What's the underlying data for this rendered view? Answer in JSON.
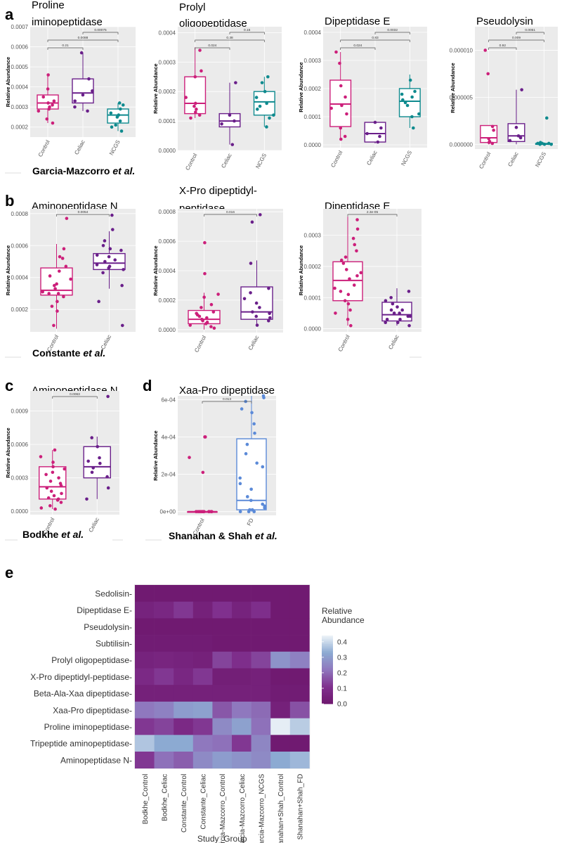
{
  "colors": {
    "control": "#cc1f7a",
    "celiac": "#6a1f8a",
    "ncgs": "#0e8a8e",
    "fd": "#5b8ad8",
    "panel_bg": "#ebebeb",
    "grid": "#ffffff"
  },
  "common": {
    "ylabel": "Relative Abundance"
  },
  "panel_letters": {
    "a": "a",
    "b": "b",
    "c": "c",
    "d": "d",
    "e": "e"
  },
  "study_labels": [
    {
      "text": "Garcia-Mazcorro ",
      "italic": "et al."
    },
    {
      "text": "Constante ",
      "italic": "et al."
    },
    {
      "text": "Bodkhe ",
      "italic": "et al."
    },
    {
      "text": "Shanahan & Shah ",
      "italic": "et al."
    }
  ],
  "chart_data": [
    {
      "id": "a1",
      "type": "box",
      "title": [
        "Proline",
        "iminopeptidase"
      ],
      "categories": [
        "Control",
        "Celiac",
        "NCGS"
      ],
      "ylim": [
        0.00015,
        0.0007
      ],
      "yticks": [
        "0.0002",
        "0.0003",
        "0.0004",
        "0.0005",
        "0.0006",
        "0.0007"
      ],
      "ytick_vals": [
        0.0002,
        0.0003,
        0.0004,
        0.0005,
        0.0006,
        0.0007
      ],
      "boxes": [
        {
          "min": 0.00022,
          "q1": 0.00029,
          "med": 0.00032,
          "q3": 0.00036,
          "max": 0.00046
        },
        {
          "min": 0.00028,
          "q1": 0.00032,
          "med": 0.00037,
          "q3": 0.00044,
          "max": 0.00057
        },
        {
          "min": 0.00018,
          "q1": 0.00022,
          "med": 0.00026,
          "q3": 0.00029,
          "max": 0.00032
        }
      ],
      "points": [
        [
          0.00031,
          0.00029,
          0.00024,
          0.00035,
          0.00033,
          0.00022,
          0.00039,
          0.00046,
          0.00032,
          0.00028,
          0.0003
        ],
        [
          0.0003,
          0.00036,
          0.00044,
          0.00028,
          0.00033,
          0.00057,
          0.00038
        ],
        [
          0.00026,
          0.00021,
          0.00018,
          0.00031,
          0.00029,
          0.00023,
          0.00027,
          0.00025,
          0.00032,
          0.0002
        ]
      ],
      "pvals": [
        {
          "a": 0,
          "b": 1,
          "t": "0.21"
        },
        {
          "a": 0,
          "b": 2,
          "t": "0.0088"
        },
        {
          "a": 1,
          "b": 2,
          "t": "0.00075"
        }
      ]
    },
    {
      "id": "a2",
      "type": "box",
      "title": [
        "Prolyl",
        "oligopeptidase"
      ],
      "categories": [
        "Control",
        "Celiac",
        "NCGS"
      ],
      "ylim": [
        0,
        0.00042
      ],
      "yticks": [
        "0.0000",
        "0.0001",
        "0.0002",
        "0.0003",
        "0.0004"
      ],
      "ytick_vals": [
        0,
        0.0001,
        0.0002,
        0.0003,
        0.0004
      ],
      "boxes": [
        {
          "min": 0.00011,
          "q1": 0.000125,
          "med": 0.00016,
          "q3": 0.00025,
          "max": 0.00035
        },
        {
          "min": 2e-05,
          "q1": 8e-05,
          "med": 0.0001,
          "q3": 0.000125,
          "max": 0.00023
        },
        {
          "min": 8e-05,
          "q1": 0.00012,
          "med": 0.000165,
          "q3": 0.0002,
          "max": 0.00025
        }
      ],
      "points": [
        [
          0.00012,
          0.00014,
          0.00015,
          0.00011,
          0.00027,
          0.00034,
          0.00025,
          0.00013,
          0.00016,
          0.00018
        ],
        [
          2e-05,
          9e-05,
          0.00012,
          0.00023,
          0.0001
        ],
        [
          0.00012,
          0.00015,
          0.00018,
          0.0002,
          0.00023,
          0.00025,
          0.00011,
          0.00016,
          8e-05,
          0.00014
        ]
      ],
      "pvals": [
        {
          "a": 0,
          "b": 1,
          "t": "0.024"
        },
        {
          "a": 0,
          "b": 2,
          "t": "0.38"
        },
        {
          "a": 1,
          "b": 2,
          "t": "0.15"
        }
      ]
    },
    {
      "id": "a3",
      "type": "box",
      "title": [
        "Dipeptidase E"
      ],
      "categories": [
        "Control",
        "Celiac",
        "NCGS"
      ],
      "ylim": [
        -1e-05,
        0.00042
      ],
      "yticks": [
        "0.0000",
        "0.0001",
        "0.0002",
        "0.0003",
        "0.0004"
      ],
      "ytick_vals": [
        0,
        0.0001,
        0.0002,
        0.0003,
        0.0004
      ],
      "boxes": [
        {
          "min": 2e-05,
          "q1": 6.5e-05,
          "med": 0.000145,
          "q3": 0.00023,
          "max": 0.00033
        },
        {
          "min": 5e-06,
          "q1": 1e-05,
          "med": 4e-05,
          "q3": 8e-05,
          "max": 8e-05
        },
        {
          "min": 6e-05,
          "q1": 0.0001,
          "med": 0.000155,
          "q3": 0.0002,
          "max": 0.00025
        }
      ],
      "points": [
        [
          3e-05,
          0.00014,
          0.00029,
          0.00033,
          0.00011,
          0.00017,
          6e-05,
          2e-05,
          0.00021,
          0.00013
        ],
        [
          1e-05,
          4e-05,
          8e-05,
          6e-05,
          3e-05
        ],
        [
          0.00011,
          0.00015,
          0.00018,
          0.00023,
          0.00014,
          6e-05,
          0.00019,
          0.00017,
          0.0001,
          0.00016
        ]
      ],
      "pvals": [
        {
          "a": 0,
          "b": 1,
          "t": "0.024"
        },
        {
          "a": 0,
          "b": 2,
          "t": "0.83"
        },
        {
          "a": 1,
          "b": 2,
          "t": "0.0032"
        }
      ]
    },
    {
      "id": "a4",
      "type": "box",
      "title": [
        "Pseudolysin"
      ],
      "categories": [
        "Control",
        "Celiac",
        "NCGS"
      ],
      "ylim": [
        -5e-07,
        1.25e-05
      ],
      "yticks": [
        "0.000000",
        "0.000005",
        "0.000010"
      ],
      "ytick_vals": [
        0,
        5e-06,
        1e-05
      ],
      "boxes": [
        {
          "min": 0,
          "q1": 2e-07,
          "med": 7e-07,
          "q3": 2e-06,
          "max": 2e-06
        },
        {
          "min": 0,
          "q1": 3e-07,
          "med": 9e-07,
          "q3": 2.2e-06,
          "max": 5.8e-06
        },
        {
          "min": 0,
          "q1": 0,
          "med": 5e-08,
          "q3": 1e-07,
          "max": 2e-07
        }
      ],
      "points": [
        [
          1e-07,
          3e-07,
          7.5e-06,
          1e-05,
          1.5e-06,
          1.9e-06,
          6e-07,
          2e-07
        ],
        [
          7e-07,
          5.8e-06,
          9e-07,
          4e-07,
          1.8e-06
        ],
        [
          0,
          1e-07,
          0,
          2e-07,
          1e-07,
          0,
          1e-07,
          2.8e-06
        ]
      ],
      "pvals": [
        {
          "a": 0,
          "b": 1,
          "t": "0.92"
        },
        {
          "a": 0,
          "b": 2,
          "t": "0.009"
        },
        {
          "a": 1,
          "b": 2,
          "t": "0.0051"
        }
      ]
    },
    {
      "id": "b1",
      "type": "box",
      "title": [
        "Aminopeptidase N"
      ],
      "categories": [
        "Control",
        "Celiac"
      ],
      "ylim": [
        6e-05,
        0.00083
      ],
      "yticks": [
        "0.0002",
        "0.0004",
        "0.0006",
        "0.0008"
      ],
      "ytick_vals": [
        0.0002,
        0.0004,
        0.0006,
        0.0008
      ],
      "boxes": [
        {
          "min": 8e-05,
          "q1": 0.00029,
          "med": 0.00032,
          "q3": 0.00046,
          "max": 0.00061
        },
        {
          "min": 0.00033,
          "q1": 0.00045,
          "med": 0.00049,
          "q3": 0.00055,
          "max": 0.00069
        }
      ],
      "points": [
        [
          0.00028,
          0.0003,
          0.00033,
          0.00041,
          0.00047,
          0.00058,
          0.00036,
          0.00019,
          0.00025,
          0.00031,
          0.00044,
          0.00053,
          0.0001,
          0.00077,
          0.00022,
          0.00035,
          0.0003,
          0.00039,
          0.00052
        ],
        [
          0.00046,
          0.0005,
          0.00053,
          0.00048,
          0.00057,
          0.0006,
          0.00063,
          0.0007,
          0.00079,
          0.00047,
          0.00043,
          0.00035,
          0.0001,
          0.00025,
          0.00051,
          0.00054,
          0.00045,
          0.00058
        ]
      ],
      "pvals": [
        {
          "a": 0,
          "b": 1,
          "t": "0.0054"
        }
      ]
    },
    {
      "id": "b2",
      "type": "box",
      "title": [
        "X-Pro dipeptidyl-",
        "peptidase"
      ],
      "categories": [
        "Control",
        "Celiac"
      ],
      "ylim": [
        -2e-05,
        0.00082
      ],
      "yticks": [
        "0.0000",
        "0.0002",
        "0.0004",
        "0.0006",
        "0.0008"
      ],
      "ytick_vals": [
        0,
        0.0002,
        0.0004,
        0.0006,
        0.0008
      ],
      "boxes": [
        {
          "min": 0,
          "q1": 4e-05,
          "med": 7e-05,
          "q3": 0.00013,
          "max": 0.00025
        },
        {
          "min": 2e-05,
          "q1": 7e-05,
          "med": 0.00012,
          "q3": 0.00029,
          "max": 0.00047
        }
      ],
      "points": [
        [
          2e-05,
          4e-05,
          6e-05,
          0.0001,
          0.00012,
          0.00017,
          0.00022,
          0.00038,
          0.00059,
          3e-05,
          8e-05,
          5e-05,
          0.00015,
          1e-05,
          9e-05,
          7e-05,
          0.00011,
          0.00024
        ],
        [
          6e-05,
          9e-05,
          0.00012,
          0.00018,
          0.00021,
          0.00028,
          0.00045,
          0.00073,
          0.00078,
          0.00015,
          3e-05,
          0.00025,
          0.00011,
          8e-05
        ]
      ],
      "pvals": [
        {
          "a": 0,
          "b": 1,
          "t": "0.016"
        }
      ]
    },
    {
      "id": "b3",
      "type": "box",
      "title": [
        "Dipeptidase E"
      ],
      "categories": [
        "Control",
        "Celiac"
      ],
      "ylim": [
        -1e-05,
        0.000385
      ],
      "yticks": [
        "0.0000",
        "0.0001",
        "0.0002",
        "0.0003"
      ],
      "ytick_vals": [
        0,
        0.0001,
        0.0002,
        0.0003
      ],
      "boxes": [
        {
          "min": 1e-05,
          "q1": 9e-05,
          "med": 0.000155,
          "q3": 0.000215,
          "max": 0.00036
        },
        {
          "min": 1e-05,
          "q1": 2.5e-05,
          "med": 4.5e-05,
          "q3": 8.5e-05,
          "max": 0.00013
        }
      ],
      "points": [
        [
          0.00014,
          0.00016,
          0.00019,
          0.00022,
          0.00025,
          0.00027,
          3e-05,
          8e-05,
          0.00011,
          0.00013,
          6e-05,
          1e-05,
          9e-05,
          0.00017,
          0.00021,
          0.00023,
          0.00012,
          0.00018,
          0.00029,
          0.00032,
          0.00035,
          5e-05
        ],
        [
          2e-05,
          4e-05,
          6e-05,
          8e-05,
          3e-05,
          5e-05,
          7e-05,
          0.0001,
          0.00012,
          1e-05,
          3e-05,
          6e-05,
          9e-05,
          4e-05,
          2e-05,
          5e-05
        ]
      ],
      "pvals": [
        {
          "a": 0,
          "b": 1,
          "t": "2.3e-05"
        }
      ]
    },
    {
      "id": "c1",
      "type": "box",
      "title": [
        "Aminopeptidase N"
      ],
      "categories": [
        "Control",
        "Celiac"
      ],
      "ylim": [
        -3e-05,
        0.00108
      ],
      "yticks": [
        "0.0000",
        "0.0003",
        "0.0006",
        "0.0009"
      ],
      "ytick_vals": [
        0,
        0.0003,
        0.0006,
        0.0009
      ],
      "boxes": [
        {
          "min": 2e-05,
          "q1": 0.00011,
          "med": 0.00022,
          "q3": 0.0004,
          "max": 0.00055
        },
        {
          "min": 0.00011,
          "q1": 0.0003,
          "med": 0.0004,
          "q3": 0.00058,
          "max": 0.00067
        }
      ],
      "points": [
        [
          0.00011,
          0.00014,
          0.00018,
          0.00021,
          0.00025,
          0.0003,
          0.00035,
          0.0004,
          0.00044,
          0.00049,
          0.00055,
          2e-05,
          5e-05,
          8e-05,
          0.00012,
          0.00027,
          0.00033,
          0.00038,
          0.0001,
          0.00016,
          0.00023,
          3e-05
        ],
        [
          0.00011,
          0.00031,
          0.00035,
          0.00039,
          0.00043,
          0.00048,
          0.00058,
          0.00066,
          0.00103,
          0.00021,
          0.00045
        ]
      ],
      "pvals": [
        {
          "a": 0,
          "b": 1,
          "t": "0.0063"
        }
      ]
    },
    {
      "id": "d1",
      "type": "box",
      "title": [
        "Xaa-Pro dipeptidase"
      ],
      "categories": [
        "Control",
        "FD"
      ],
      "ylim": [
        -2e-05,
        0.00062
      ],
      "yticks": [
        "0e+00",
        "2e-04",
        "4e-04",
        "6e-04"
      ],
      "ytick_vals": [
        0,
        0.0002,
        0.0004,
        0.0006
      ],
      "boxes": [
        {
          "min": 0,
          "q1": 0,
          "med": 0,
          "q3": 0,
          "max": 0
        },
        {
          "min": 0,
          "q1": 1e-05,
          "med": 6e-05,
          "q3": 0.00039,
          "max": 0.00062
        }
      ],
      "points": [
        [
          0,
          0,
          0,
          0,
          0,
          0,
          0,
          0,
          0.00021,
          0.00029,
          0.0004,
          0.0004,
          0,
          0,
          0
        ],
        [
          0,
          1e-05,
          2e-05,
          4e-05,
          6e-05,
          8e-05,
          0.00012,
          0.00018,
          0.00024,
          0.00031,
          0.00036,
          0.00042,
          0.00047,
          0.00053,
          0.00059,
          0.00062,
          0.00061,
          0.00055,
          0.00026,
          0.00015,
          3e-05,
          1e-05,
          0,
          0
        ]
      ],
      "pvals": [
        {
          "a": 0,
          "b": 1,
          "t": "0.013"
        }
      ]
    },
    {
      "id": "e1",
      "type": "heatmap",
      "rows": [
        "Sedolisin-",
        "Dipeptidase E-",
        "Pseudolysin-",
        "Subtilisin-",
        "Prolyl oligopeptidase-",
        "X-Pro dipeptidyl-peptidase-",
        "Beta-Ala-Xaa dipeptidase-",
        "Xaa-Pro dipeptidase-",
        "Proline iminopeptidase-",
        "Tripeptide aminopeptidase-",
        "Aminopeptidase N-"
      ],
      "columns": [
        "Bodkhe_Control",
        "Bodkhe_Celiac",
        "Constante_Control",
        "Constante_Celiac",
        "Garcia-Mazcorro_Control",
        "Garcia-Mazcorro_Celiac",
        "Garcia-Mazcorro_NCGS",
        "Shanahan+Shah_Control",
        "Shanahan+Shah_FD"
      ],
      "values": [
        [
          0.01,
          0.01,
          0.01,
          0.01,
          0.01,
          0.01,
          0.01,
          0.01,
          0.01
        ],
        [
          0.05,
          0.07,
          0.12,
          0.04,
          0.11,
          0.05,
          0.1,
          0.01,
          0.01
        ],
        [
          0.01,
          0.01,
          0.01,
          0.01,
          0.01,
          0.01,
          0.01,
          0.01,
          0.01
        ],
        [
          0.02,
          0.02,
          0.02,
          0.02,
          0.01,
          0.01,
          0.01,
          0.01,
          0.01
        ],
        [
          0.05,
          0.06,
          0.05,
          0.04,
          0.14,
          0.1,
          0.14,
          0.28,
          0.24
        ],
        [
          0.08,
          0.12,
          0.07,
          0.12,
          0.03,
          0.03,
          0.04,
          0.01,
          0.01
        ],
        [
          0.04,
          0.04,
          0.04,
          0.04,
          0.04,
          0.04,
          0.04,
          0.02,
          0.02
        ],
        [
          0.22,
          0.24,
          0.3,
          0.31,
          0.17,
          0.22,
          0.2,
          0.04,
          0.16
        ],
        [
          0.12,
          0.14,
          0.08,
          0.12,
          0.26,
          0.31,
          0.21,
          0.43,
          0.38
        ],
        [
          0.37,
          0.33,
          0.33,
          0.22,
          0.21,
          0.12,
          0.25,
          0.01,
          0.01
        ],
        [
          0.12,
          0.21,
          0.18,
          0.26,
          0.3,
          0.28,
          0.26,
          0.33,
          0.35
        ]
      ],
      "xlabel": "Study_Group",
      "legend": {
        "title": [
          "Relative",
          "Abundance"
        ],
        "ticks": [
          "0.4",
          "0.3",
          "0.2",
          "0.1",
          "0.0"
        ],
        "tick_vals": [
          0.4,
          0.3,
          0.2,
          0.1,
          0.0
        ],
        "range": [
          0,
          0.44
        ]
      }
    }
  ]
}
